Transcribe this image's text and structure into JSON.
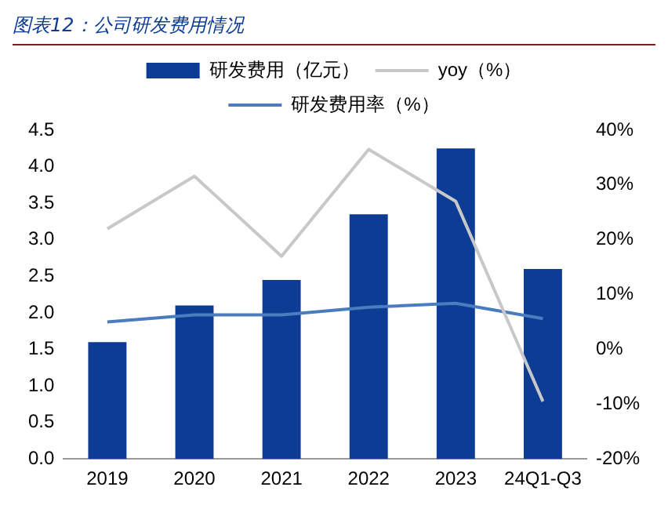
{
  "chart_data": {
    "type": "bar",
    "title": "图表12：公司研发费用情况",
    "categories": [
      "2019",
      "2020",
      "2021",
      "2022",
      "2023",
      "24Q1-Q3"
    ],
    "series": [
      {
        "name": "研发费用（亿元）",
        "color": "#0d3c94",
        "values": [
          1.6,
          2.1,
          2.45,
          3.35,
          4.25,
          2.6
        ]
      },
      {
        "name": "yoy（%）",
        "type": "line",
        "axis": "y2",
        "color": "#c8c8c8",
        "values": [
          22,
          31.6,
          17,
          36.5,
          27,
          -9.5
        ]
      },
      {
        "name": "研发费用率（%）",
        "type": "line",
        "axis": "y2",
        "color": "#4a7dc0",
        "values": [
          5,
          6.3,
          6.3,
          7.7,
          8.4,
          5.6
        ]
      }
    ],
    "ylim": [
      0,
      4.5
    ],
    "yticks": [
      {
        "value": 0,
        "label": "0.0"
      },
      {
        "value": 0.5,
        "label": "0.5"
      },
      {
        "value": 1,
        "label": "1.0"
      },
      {
        "value": 1.5,
        "label": "1.5"
      },
      {
        "value": 2,
        "label": "2.0"
      },
      {
        "value": 2.5,
        "label": "2.5"
      },
      {
        "value": 3,
        "label": "3.0"
      },
      {
        "value": 3.5,
        "label": "3.5"
      },
      {
        "value": 4,
        "label": "4.0"
      },
      {
        "value": 4.5,
        "label": "4.5"
      }
    ],
    "y2lim": [
      -20,
      40
    ],
    "y2ticks": [
      {
        "value": -20,
        "label": "-20%"
      },
      {
        "value": -10,
        "label": "-10%"
      },
      {
        "value": 0,
        "label": "0%"
      },
      {
        "value": 10,
        "label": "10%"
      },
      {
        "value": 20,
        "label": "20%"
      },
      {
        "value": 30,
        "label": "30%"
      },
      {
        "value": 40,
        "label": "40%"
      }
    ],
    "legend": "top",
    "grid": false,
    "marker": "none"
  }
}
